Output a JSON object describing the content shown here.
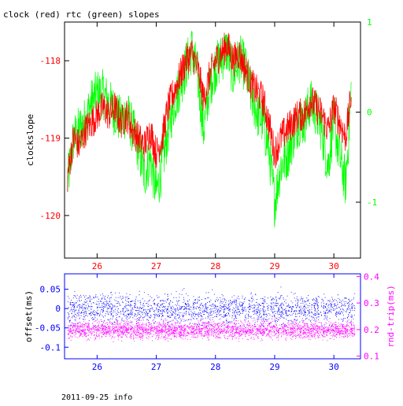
{
  "chart_data": [
    {
      "type": "line",
      "title": "clock (red) rtc (green) slopes",
      "ylabel": "clockslope",
      "x_ticks": [
        "26",
        "27",
        "28",
        "29",
        "30"
      ],
      "xlim": [
        25.45,
        30.45
      ],
      "ylim": [
        -120.55,
        -117.5
      ],
      "y_ticks": [
        "-118",
        "-119",
        "-120"
      ],
      "y2lim": [
        -1.62,
        1.0
      ],
      "y2_ticks": [
        "1",
        "0",
        "-1"
      ],
      "colors": {
        "red": "#ff0000",
        "green": "#00ff00",
        "axis": "#000000"
      },
      "series": [
        {
          "color": "#ff0000",
          "x": [
            25.5,
            25.6,
            25.7,
            25.8,
            25.9,
            26.0,
            26.1,
            26.2,
            26.3,
            26.4,
            26.5,
            26.6,
            26.7,
            26.8,
            26.9,
            27.0,
            27.1,
            27.2,
            27.3,
            27.4,
            27.5,
            27.6,
            27.7,
            27.8,
            27.9,
            28.0,
            28.1,
            28.2,
            28.3,
            28.4,
            28.5,
            28.6,
            28.7,
            28.8,
            28.9,
            29.0,
            29.1,
            29.2,
            29.3,
            29.4,
            29.5,
            29.6,
            29.7,
            29.8,
            29.9,
            30.0,
            30.1,
            30.2,
            30.3
          ],
          "values": [
            -119.5,
            -119.0,
            -119.1,
            -118.9,
            -118.8,
            -118.7,
            -118.6,
            -118.7,
            -118.6,
            -118.8,
            -118.7,
            -118.9,
            -119.0,
            -119.1,
            -118.9,
            -119.2,
            -119.0,
            -118.6,
            -118.4,
            -118.2,
            -118.0,
            -117.9,
            -118.1,
            -118.5,
            -118.2,
            -118.0,
            -117.9,
            -117.8,
            -118.0,
            -117.9,
            -118.1,
            -118.3,
            -118.4,
            -118.5,
            -118.8,
            -119.2,
            -119.0,
            -118.9,
            -118.8,
            -118.7,
            -118.7,
            -118.5,
            -118.6,
            -118.7,
            -118.9,
            -118.6,
            -118.8,
            -119.0,
            -118.4
          ]
        },
        {
          "color": "#00ff00",
          "x": [
            25.5,
            25.6,
            25.7,
            25.8,
            25.9,
            26.0,
            26.1,
            26.2,
            26.3,
            26.4,
            26.5,
            26.6,
            26.7,
            26.8,
            26.9,
            27.0,
            27.1,
            27.2,
            27.3,
            27.4,
            27.5,
            27.6,
            27.7,
            27.8,
            27.9,
            28.0,
            28.1,
            28.2,
            28.3,
            28.4,
            28.5,
            28.6,
            28.7,
            28.8,
            28.9,
            29.0,
            29.1,
            29.2,
            29.3,
            29.4,
            29.5,
            29.6,
            29.7,
            29.8,
            29.9,
            30.0,
            30.1,
            30.2,
            30.3
          ],
          "values": [
            -0.8,
            -0.3,
            -0.2,
            -0.1,
            0.1,
            0.2,
            0.2,
            0.1,
            0.0,
            -0.1,
            0.0,
            -0.2,
            -0.4,
            -0.7,
            -0.5,
            -0.9,
            -0.6,
            -0.2,
            0.1,
            0.3,
            0.5,
            0.7,
            0.4,
            -0.2,
            0.3,
            0.5,
            0.6,
            0.7,
            0.4,
            0.6,
            0.5,
            0.2,
            0.0,
            -0.1,
            -0.4,
            -1.0,
            -0.6,
            -0.5,
            -0.3,
            -0.1,
            -0.1,
            0.1,
            0.0,
            -0.2,
            -0.6,
            -0.1,
            -0.5,
            -0.8,
            0.3
          ]
        }
      ]
    },
    {
      "type": "scatter",
      "ylabel": "offset(ms)",
      "y2label": "rnd-trip(ms)",
      "x_ticks": [
        "26",
        "27",
        "28",
        "29",
        "30"
      ],
      "xlim": [
        25.45,
        30.45
      ],
      "ylim": [
        -0.13,
        0.09
      ],
      "y_ticks": [
        "0.05",
        "0",
        "-0.05",
        "-0.1"
      ],
      "y2lim": [
        0.09,
        0.41
      ],
      "y2_ticks": [
        "0.4",
        "0.3",
        "0.2",
        "0.1"
      ],
      "colors": {
        "offset": "#0000ff",
        "roundtrip": "#ff00ff",
        "axis": "#0000ff"
      },
      "series": [
        {
          "color": "#0000ff",
          "x_range": [
            25.5,
            30.35
          ],
          "center": 0.0,
          "spread": 0.04,
          "range": [
            -0.05,
            0.08
          ]
        },
        {
          "color": "#ff00ff",
          "x_range": [
            25.5,
            30.35
          ],
          "center": 0.2,
          "spread": 0.035,
          "range": [
            0.1,
            0.38
          ]
        }
      ]
    }
  ],
  "footer": {
    "date_info": "2011-09-25 info"
  }
}
